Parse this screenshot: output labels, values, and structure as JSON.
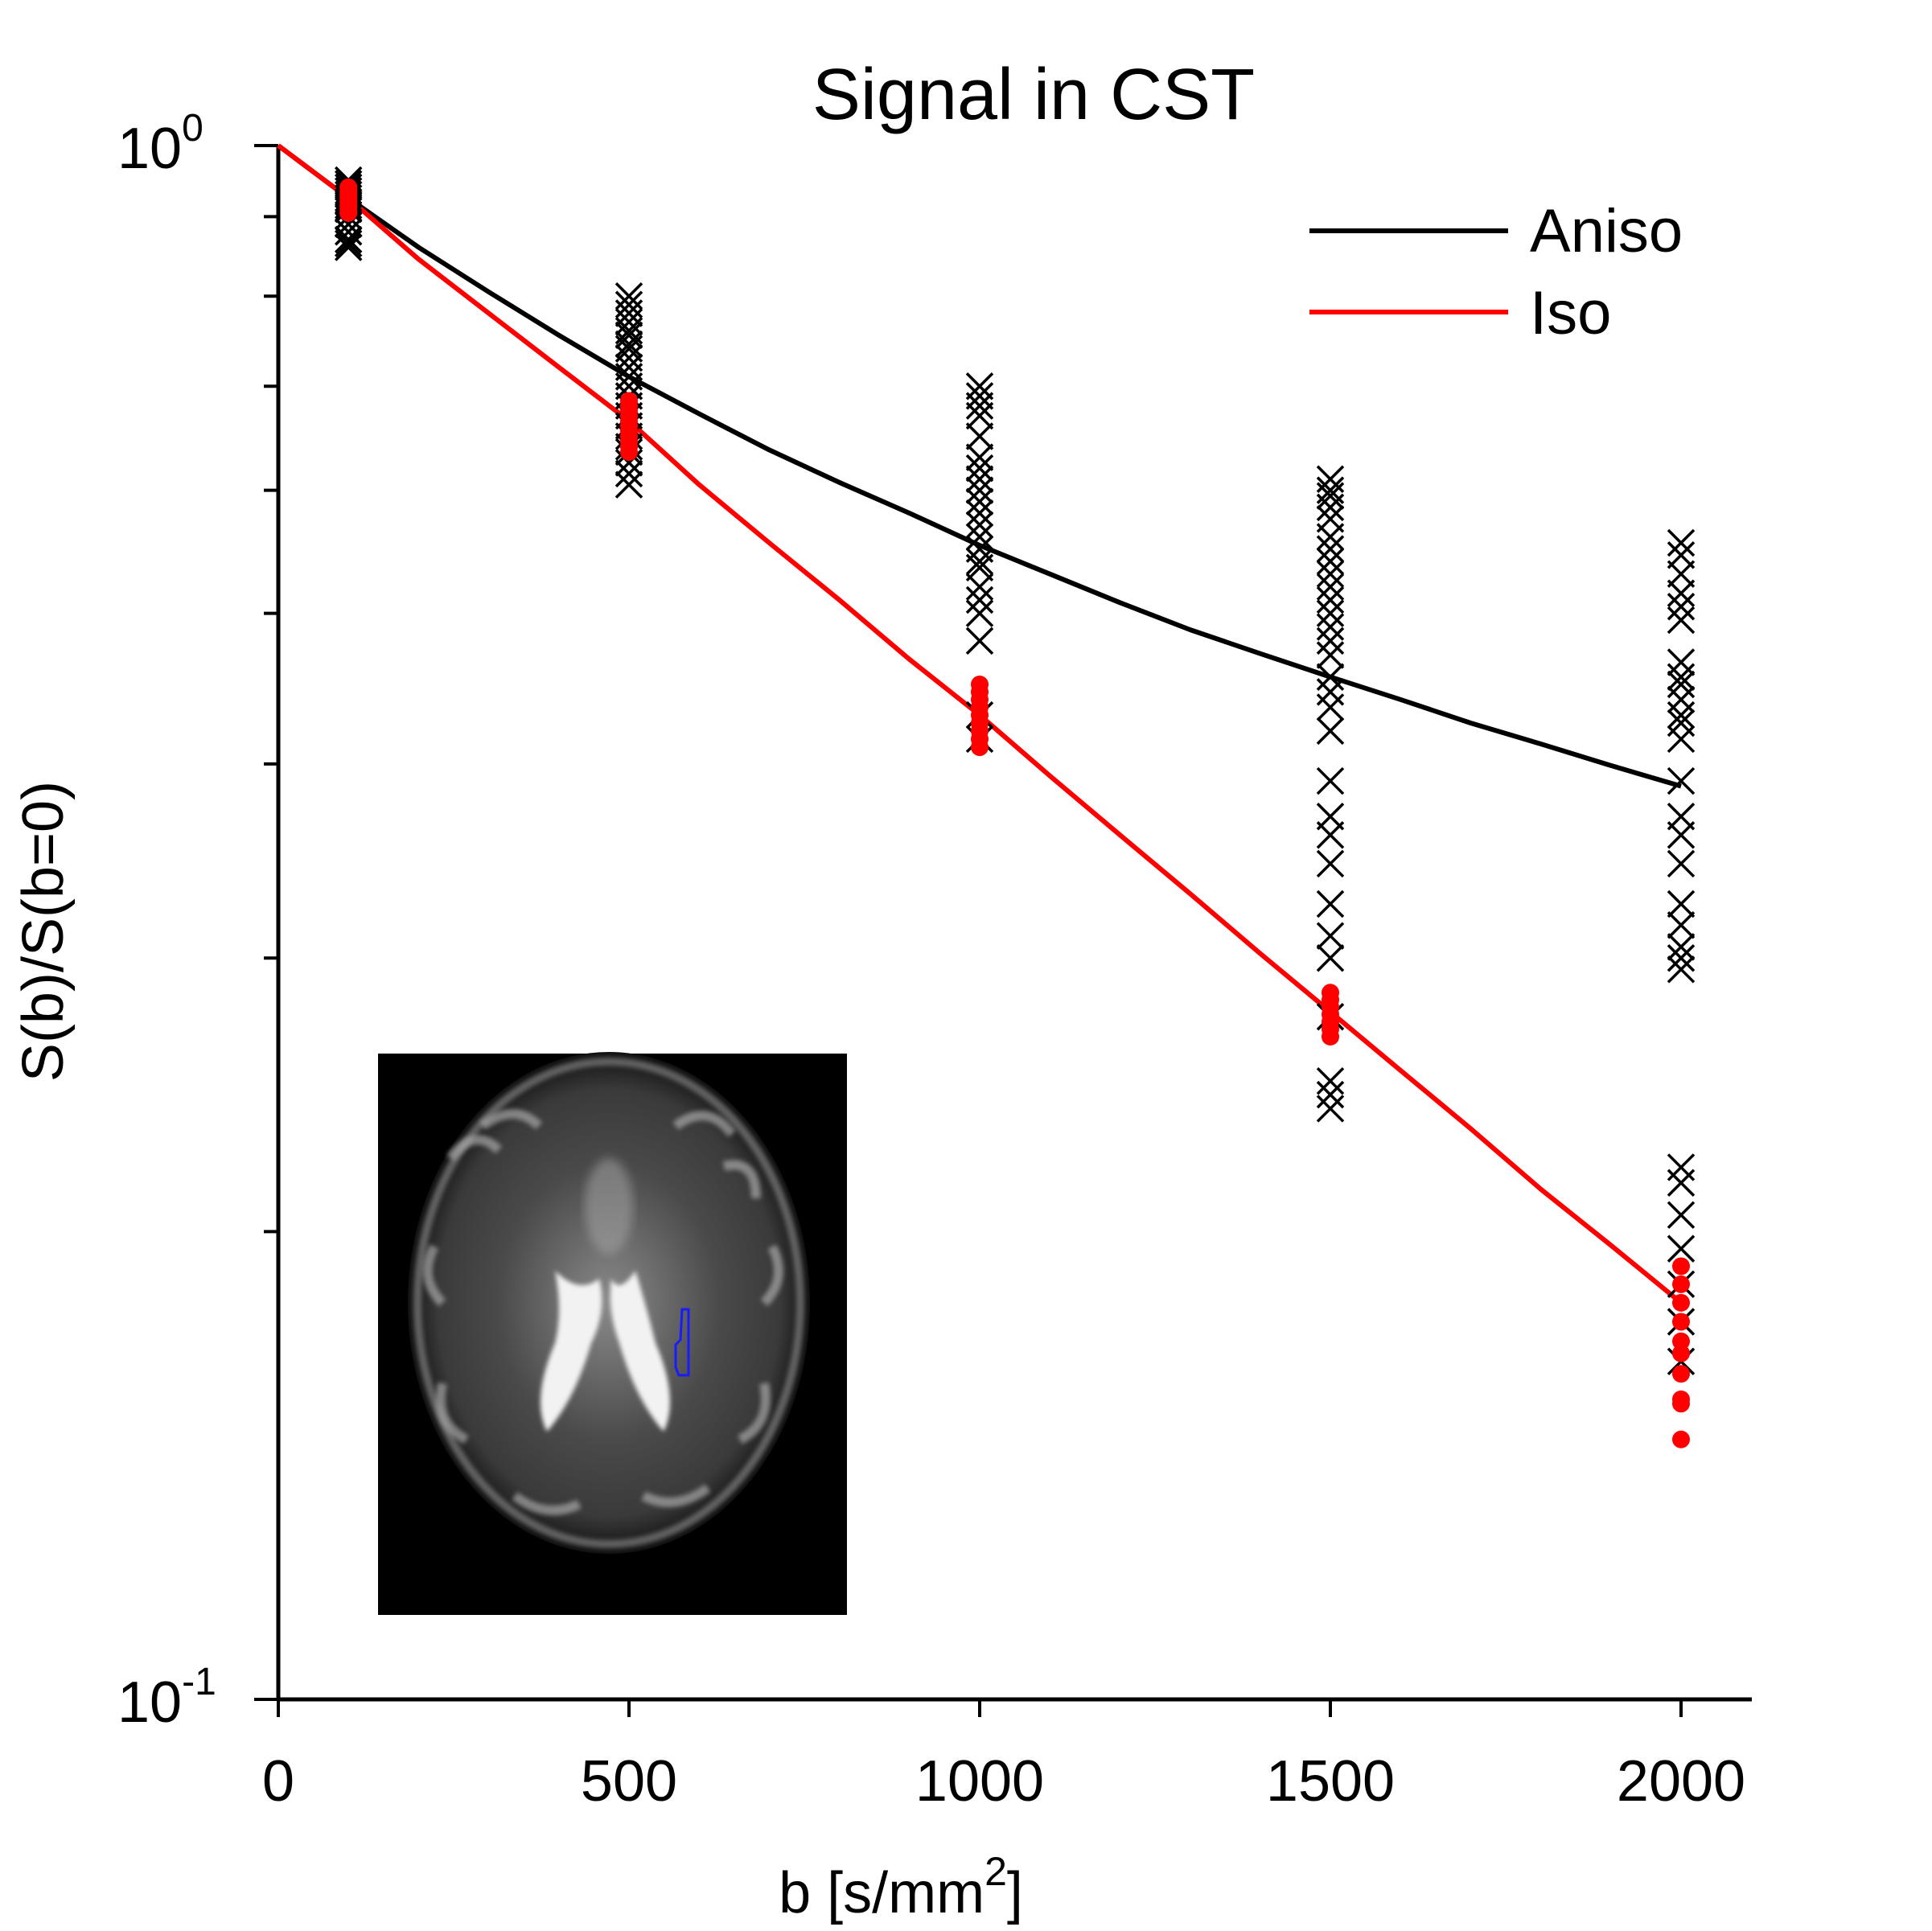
{
  "chart_data": {
    "type": "scatter",
    "title": "Signal in CST",
    "xlabel_base": "b [s/mm",
    "xlabel_sup": "2",
    "xlabel_tail": "]",
    "ylabel": "S(b)/S(b=0)",
    "yscale": "log",
    "xlim": [
      0,
      2100
    ],
    "ylim": [
      0.1,
      1.0
    ],
    "x_ticks": [
      {
        "value": 0,
        "label": "0"
      },
      {
        "value": 500,
        "label": "500"
      },
      {
        "value": 1000,
        "label": "1000"
      },
      {
        "value": 1500,
        "label": "1500"
      },
      {
        "value": 2000,
        "label": "2000"
      }
    ],
    "y_ticks": [
      {
        "value": 1.0,
        "base": "10",
        "exp": "0"
      },
      {
        "value": 0.1,
        "base": "10",
        "exp": "-1"
      }
    ],
    "y_minor_ticks": [
      0.2,
      0.3,
      0.4,
      0.5,
      0.6,
      0.7,
      0.8,
      0.9
    ],
    "legend_position": "top-right",
    "series": [
      {
        "name": "Aniso",
        "color": "#000000",
        "line": {
          "x": [
            0,
            100,
            200,
            300,
            400,
            500,
            600,
            700,
            800,
            900,
            1000,
            1100,
            1200,
            1300,
            1400,
            1500,
            1600,
            1700,
            1800,
            1900,
            2000
          ],
          "y": [
            1.0,
            0.925,
            0.86,
            0.805,
            0.755,
            0.71,
            0.672,
            0.637,
            0.607,
            0.58,
            0.553,
            0.53,
            0.508,
            0.488,
            0.471,
            0.455,
            0.44,
            0.425,
            0.412,
            0.399,
            0.387
          ]
        },
        "marker": "x",
        "points": {
          "100": [
            0.95,
            0.945,
            0.94,
            0.935,
            0.93,
            0.925,
            0.92,
            0.915,
            0.91,
            0.9,
            0.89,
            0.88,
            0.87,
            0.865,
            0.86
          ],
          "500": [
            0.8,
            0.79,
            0.78,
            0.77,
            0.76,
            0.755,
            0.745,
            0.74,
            0.73,
            0.72,
            0.71,
            0.7,
            0.69,
            0.68,
            0.67,
            0.66,
            0.65,
            0.64,
            0.635,
            0.625,
            0.615,
            0.605
          ],
          "1000": [
            0.7,
            0.69,
            0.68,
            0.67,
            0.65,
            0.63,
            0.62,
            0.61,
            0.6,
            0.59,
            0.58,
            0.57,
            0.56,
            0.55,
            0.54,
            0.535,
            0.52,
            0.51,
            0.5,
            0.48,
            0.43,
            0.415
          ],
          "1500": [
            0.61,
            0.6,
            0.595,
            0.585,
            0.575,
            0.56,
            0.55,
            0.54,
            0.53,
            0.52,
            0.51,
            0.5,
            0.49,
            0.48,
            0.47,
            0.455,
            0.445,
            0.435,
            0.42,
            0.39,
            0.37,
            0.36,
            0.345,
            0.325,
            0.31,
            0.3,
            0.275,
            0.25,
            0.245,
            0.24
          ],
          "2000": [
            0.555,
            0.545,
            0.53,
            0.515,
            0.505,
            0.495,
            0.465,
            0.455,
            0.45,
            0.44,
            0.43,
            0.425,
            0.415,
            0.39,
            0.37,
            0.36,
            0.345,
            0.325,
            0.315,
            0.305,
            0.3,
            0.295,
            0.22,
            0.215,
            0.205,
            0.195,
            0.185,
            0.175,
            0.165
          ]
        }
      },
      {
        "name": "Iso",
        "color": "#ff0000",
        "line": {
          "x": [
            0,
            100,
            200,
            300,
            400,
            500,
            600,
            700,
            800,
            900,
            1000,
            1100,
            1200,
            1300,
            1400,
            1500,
            1600,
            1700,
            1800,
            1900,
            2000
          ],
          "y": [
            1.0,
            0.925,
            0.845,
            0.78,
            0.72,
            0.665,
            0.605,
            0.555,
            0.51,
            0.467,
            0.43,
            0.393,
            0.36,
            0.33,
            0.302,
            0.277,
            0.254,
            0.233,
            0.213,
            0.196,
            0.18
          ]
        },
        "marker": "dot",
        "points": {
          "100": [
            0.94,
            0.935,
            0.93,
            0.925,
            0.92,
            0.915,
            0.91,
            0.905
          ],
          "500": [
            0.685,
            0.68,
            0.675,
            0.67,
            0.665,
            0.66,
            0.655,
            0.65,
            0.645,
            0.64,
            0.635
          ],
          "1000": [
            0.45,
            0.445,
            0.44,
            0.435,
            0.43,
            0.425,
            0.42,
            0.415,
            0.41
          ],
          "1500": [
            0.285,
            0.282,
            0.279,
            0.276,
            0.273,
            0.27,
            0.267
          ],
          "2000": [
            0.19,
            0.185,
            0.18,
            0.175,
            0.17,
            0.167,
            0.162,
            0.156,
            0.155,
            0.147
          ]
        }
      }
    ],
    "inset": {
      "description_hidden": true,
      "roi_color": "#1a1aff"
    }
  }
}
